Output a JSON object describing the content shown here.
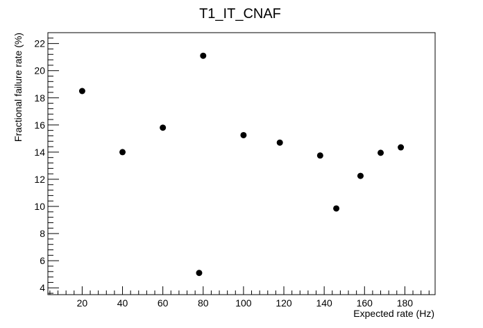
{
  "chart_data": {
    "type": "scatter",
    "title": "T1_IT_CNAF",
    "xlabel": "Expected rate (Hz)",
    "ylabel": "Fractional failure rate (%)",
    "xlim": [
      3,
      195
    ],
    "ylim": [
      3.5,
      22.8
    ],
    "x_ticks": [
      20,
      40,
      60,
      80,
      100,
      120,
      140,
      160,
      180
    ],
    "x_minor_step": 4,
    "y_ticks": [
      4,
      6,
      8,
      10,
      12,
      14,
      16,
      18,
      20,
      22
    ],
    "y_minor_step": 0.4,
    "grid": false,
    "legend": "none",
    "marker_color": "#000000",
    "points": [
      {
        "x": 20,
        "y": 18.5
      },
      {
        "x": 40,
        "y": 14.0
      },
      {
        "x": 60,
        "y": 15.8
      },
      {
        "x": 78,
        "y": 5.1
      },
      {
        "x": 80,
        "y": 21.1
      },
      {
        "x": 100,
        "y": 15.25
      },
      {
        "x": 118,
        "y": 14.7
      },
      {
        "x": 138,
        "y": 13.75
      },
      {
        "x": 146,
        "y": 9.85
      },
      {
        "x": 158,
        "y": 12.25
      },
      {
        "x": 168,
        "y": 13.95
      },
      {
        "x": 178,
        "y": 14.35
      }
    ]
  }
}
